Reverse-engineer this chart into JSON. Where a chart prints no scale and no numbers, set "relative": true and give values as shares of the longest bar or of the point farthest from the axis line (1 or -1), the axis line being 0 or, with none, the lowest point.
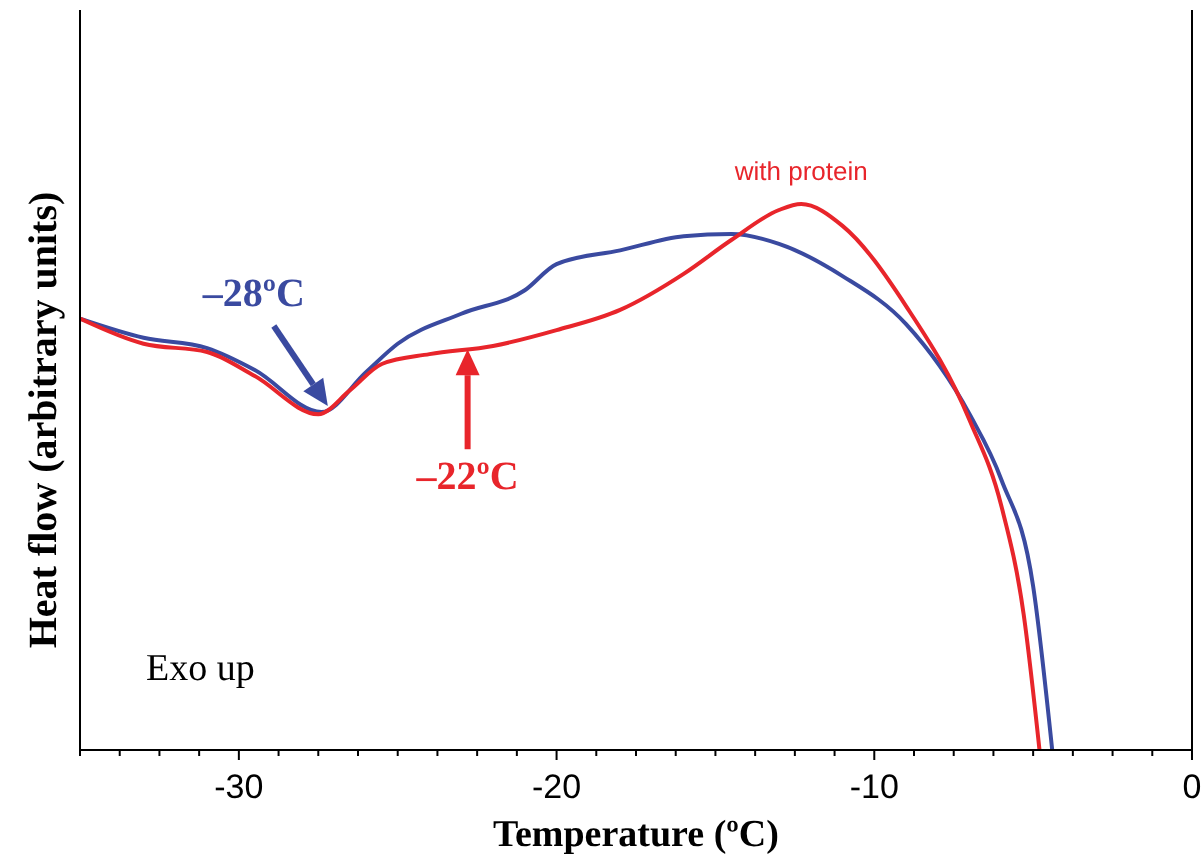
{
  "chart_data": {
    "type": "line",
    "relative": true,
    "xlabel": "Temperature (ºC)",
    "ylabel": "Heat flow (arbitrary units)",
    "xlim": [
      -35,
      0
    ],
    "xticks": [
      {
        "value": -35,
        "label": null
      },
      {
        "value": -33.75,
        "label": null
      },
      {
        "value": -32.5,
        "label": null
      },
      {
        "value": -31.25,
        "label": null
      },
      -30,
      {
        "value": -28.75,
        "label": null
      },
      {
        "value": -27.5,
        "label": null
      },
      {
        "value": -26.25,
        "label": null
      },
      {
        "value": -25,
        "label": null
      },
      {
        "value": -23.75,
        "label": null
      },
      {
        "value": -22.5,
        "label": null
      },
      {
        "value": -21.25,
        "label": null
      },
      -20,
      {
        "value": -18.75,
        "label": null
      },
      {
        "value": -17.5,
        "label": null
      },
      {
        "value": -16.25,
        "label": null
      },
      {
        "value": -15,
        "label": null
      },
      {
        "value": -13.75,
        "label": null
      },
      {
        "value": -12.5,
        "label": null
      },
      {
        "value": -11.25,
        "label": null
      },
      -10,
      {
        "value": -8.75,
        "label": null
      },
      {
        "value": -7.5,
        "label": null
      },
      {
        "value": -6.25,
        "label": null
      },
      {
        "value": -5,
        "label": null
      },
      {
        "value": -3.75,
        "label": null
      },
      {
        "value": -2.5,
        "label": null
      },
      {
        "value": -1.25,
        "label": null
      },
      0
    ],
    "grid": false,
    "line_style": "solid",
    "series": [
      {
        "color": "#3a4aa0",
        "x": [
          -35,
          -33,
          -31,
          -29.5,
          -27.4,
          -26,
          -25,
          -23,
          -21,
          -20,
          -18,
          -16,
          -14.5,
          -13,
          -11,
          -9,
          -7,
          -6,
          -5,
          -4.4
        ],
        "values": [
          0.79,
          0.755,
          0.736,
          0.696,
          0.619,
          0.692,
          0.744,
          0.799,
          0.842,
          0.89,
          0.915,
          0.941,
          0.945,
          0.927,
          0.868,
          0.78,
          0.615,
          0.495,
          0.3,
          0
        ]
      },
      {
        "name": "with protein",
        "color": "#e8252b",
        "x": [
          -35,
          -33,
          -31,
          -29.5,
          -27.5,
          -26.5,
          -25.5,
          -24,
          -22,
          -20,
          -18,
          -16,
          -14.5,
          -13,
          -12.3,
          -11,
          -9,
          -7,
          -6,
          -5.3,
          -4.8
        ],
        "values": [
          0.79,
          0.744,
          0.729,
          0.685,
          0.615,
          0.659,
          0.707,
          0.725,
          0.74,
          0.769,
          0.806,
          0.872,
          0.934,
          0.989,
          1,
          0.96,
          0.813,
          0.604,
          0.447,
          0.249,
          0
        ]
      }
    ],
    "annotations": [
      {
        "text": "–28ºC",
        "x": -27.2,
        "y": 0.63
      },
      {
        "text": "–22ºC",
        "x": -22.8,
        "y": 0.734
      },
      "Exo up"
    ]
  }
}
